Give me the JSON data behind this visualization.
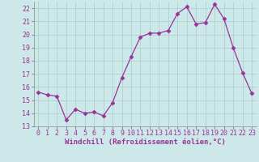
{
  "x": [
    0,
    1,
    2,
    3,
    4,
    5,
    6,
    7,
    8,
    9,
    10,
    11,
    12,
    13,
    14,
    15,
    16,
    17,
    18,
    19,
    20,
    21,
    22,
    23
  ],
  "y": [
    15.6,
    15.4,
    15.3,
    13.5,
    14.3,
    14.0,
    14.1,
    13.8,
    14.8,
    16.7,
    18.3,
    19.8,
    20.1,
    20.1,
    20.3,
    21.6,
    22.1,
    20.8,
    20.9,
    22.3,
    21.2,
    19.0,
    17.1,
    15.5
  ],
  "line_color": "#993399",
  "marker": "D",
  "marker_size": 2.5,
  "bg_color": "#cce8e8",
  "grid_color": "#aacccc",
  "xlabel": "Windchill (Refroidissement éolien,°C)",
  "xlabel_fontsize": 6.5,
  "xlabel_color": "#993399",
  "ylim": [
    13,
    22.5
  ],
  "xlim": [
    -0.5,
    23.5
  ],
  "yticks": [
    13,
    14,
    15,
    16,
    17,
    18,
    19,
    20,
    21,
    22
  ],
  "xticks": [
    0,
    1,
    2,
    3,
    4,
    5,
    6,
    7,
    8,
    9,
    10,
    11,
    12,
    13,
    14,
    15,
    16,
    17,
    18,
    19,
    20,
    21,
    22,
    23
  ],
  "tick_fontsize": 6.0,
  "tick_color": "#993399",
  "line_width": 0.9
}
